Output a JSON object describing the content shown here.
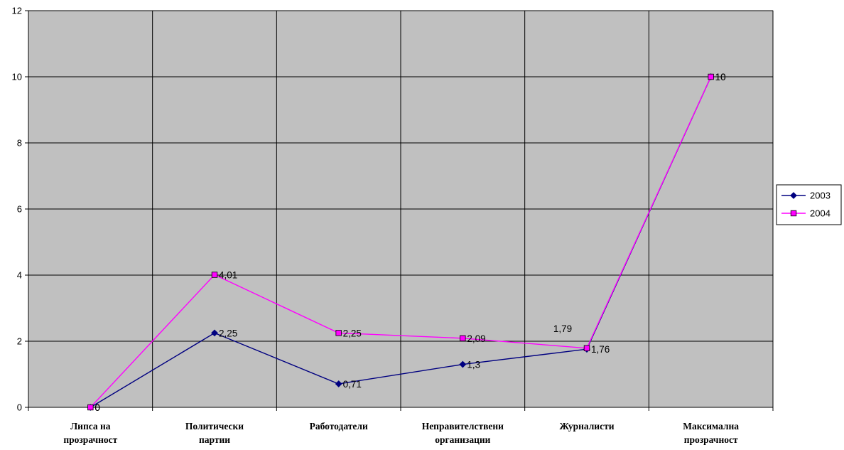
{
  "chart_data": {
    "type": "line",
    "title": "",
    "xlabel": "",
    "ylabel": "",
    "ylim": [
      0,
      12
    ],
    "yticks": [
      "0",
      "2",
      "4",
      "6",
      "8",
      "10",
      "12"
    ],
    "grid": true,
    "plot_background": "#c0c0c0",
    "legend_position": "right",
    "categories": [
      [
        "Липса на",
        "прозрачност"
      ],
      [
        "Политически",
        "партии"
      ],
      [
        "Работодатели"
      ],
      [
        "Неправителствени",
        "организации"
      ],
      [
        "Журналисти"
      ],
      [
        "Максимална",
        "прозрачност"
      ]
    ],
    "series": [
      {
        "name": "2003",
        "color": "#000080",
        "marker": "diamond",
        "values": [
          0,
          2.25,
          0.71,
          1.3,
          1.76,
          10
        ],
        "labels": [
          "0",
          "2,25",
          "0,71",
          "1,3",
          "1,76",
          "10"
        ]
      },
      {
        "name": "2004",
        "color": "#ff00ff",
        "marker": "square",
        "values": [
          0,
          4.01,
          2.25,
          2.09,
          1.79,
          10
        ],
        "labels": [
          "0",
          "4,01",
          "2,25",
          "2,09",
          "1,79",
          "10"
        ]
      }
    ]
  }
}
